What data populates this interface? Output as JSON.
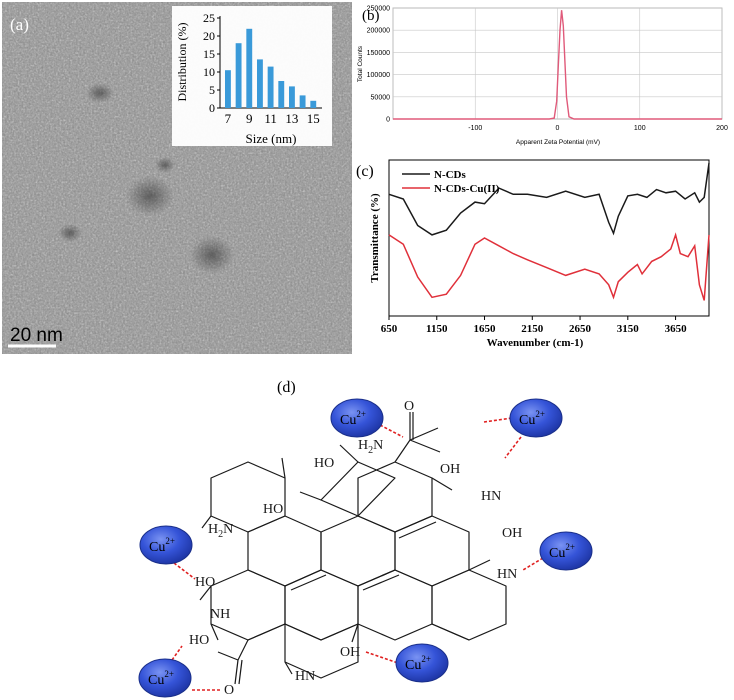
{
  "panel_a": {
    "label": "(a)",
    "scale_bar": "20 nm",
    "inset": {
      "ylabel": "Distribution (%)",
      "xlabel": "Size (nm)",
      "y_ticks": [
        "0",
        "5",
        "10",
        "15",
        "20",
        "25"
      ],
      "x_ticks": [
        "7",
        "9",
        "11",
        "13",
        "15"
      ]
    }
  },
  "panel_b": {
    "label": "(b)",
    "ylabel": "Total Counts",
    "xlabel": "Apparent Zeta Potential (mV)",
    "y_ticks": [
      "0",
      "50000",
      "100000",
      "150000",
      "200000",
      "250000"
    ],
    "x_ticks": [
      "-100",
      "0",
      "100",
      "200"
    ]
  },
  "panel_c": {
    "label": "(c)",
    "ylabel": "Transmittance (%)",
    "xlabel": "Wavenumber (cm-1)",
    "x_ticks": [
      "650",
      "1150",
      "1650",
      "2150",
      "2650",
      "3150",
      "3650"
    ],
    "legend": [
      "N-CDs",
      "N-CDs-Cu(II)"
    ]
  },
  "panel_d": {
    "label": "(d)",
    "ion": "Cu",
    "charge": "2+",
    "groups": {
      "h2n": "H",
      "h2n_sub": "2",
      "h2n_n": "N",
      "o": "O",
      "oh": "OH",
      "ho": "HO",
      "hn": "HN",
      "nh": "NH"
    }
  },
  "chart_data": [
    {
      "type": "bar",
      "categories": [
        "7",
        "8",
        "9",
        "10",
        "11",
        "12",
        "13",
        "14",
        "15"
      ],
      "values": [
        10.5,
        18,
        22,
        13.5,
        11.5,
        7.5,
        6,
        3.5,
        2
      ],
      "xlabel": "Size (nm)",
      "ylabel": "Distribution (%)",
      "ylim": [
        0,
        25
      ],
      "colors": [
        "#3a9ad9"
      ]
    },
    {
      "type": "line",
      "xlabel": "Apparent Zeta Potential (mV)",
      "ylabel": "Total Counts",
      "xlim": [
        -200,
        200
      ],
      "ylim": [
        0,
        250000
      ],
      "grid": true,
      "series": [
        {
          "x": [
            -200,
            -10,
            -4,
            -1,
            1,
            3,
            5,
            7,
            9,
            11,
            14,
            20,
            200
          ],
          "y": [
            0,
            0,
            2000,
            40000,
            120000,
            200000,
            245000,
            210000,
            130000,
            50000,
            5000,
            0,
            0
          ]
        }
      ],
      "colors": [
        "#e05a7a"
      ]
    },
    {
      "type": "line",
      "xlabel": "Wavenumber (cm-1)",
      "ylabel": "Transmittance (%)",
      "xlim": [
        650,
        4000
      ],
      "legend": "top-left",
      "series": [
        {
          "name": "N-CDs",
          "x": [
            650,
            800,
            950,
            1100,
            1250,
            1400,
            1550,
            1650,
            1800,
            1950,
            2100,
            2300,
            2500,
            2700,
            2850,
            2950,
            3000,
            3050,
            3150,
            3250,
            3350,
            3450,
            3550,
            3650,
            3750,
            3850,
            3900,
            3950,
            4000
          ],
          "y": [
            0.78,
            0.75,
            0.58,
            0.52,
            0.55,
            0.66,
            0.73,
            0.72,
            0.82,
            0.78,
            0.78,
            0.76,
            0.8,
            0.76,
            0.78,
            0.6,
            0.53,
            0.64,
            0.77,
            0.78,
            0.76,
            0.81,
            0.79,
            0.8,
            0.75,
            0.79,
            0.73,
            0.76,
            0.98
          ]
        },
        {
          "name": "N-CDs-Cu(II)",
          "x": [
            650,
            800,
            950,
            1100,
            1250,
            1400,
            1550,
            1650,
            1800,
            1950,
            2100,
            2300,
            2500,
            2700,
            2850,
            2950,
            3000,
            3050,
            3150,
            3250,
            3300,
            3400,
            3500,
            3600,
            3650,
            3700,
            3780,
            3850,
            3900,
            3950,
            4000
          ],
          "y": [
            0.52,
            0.46,
            0.25,
            0.12,
            0.14,
            0.26,
            0.46,
            0.5,
            0.45,
            0.4,
            0.36,
            0.31,
            0.26,
            0.3,
            0.27,
            0.2,
            0.12,
            0.22,
            0.28,
            0.33,
            0.27,
            0.35,
            0.38,
            0.43,
            0.52,
            0.4,
            0.38,
            0.45,
            0.2,
            0.1,
            0.52
          ]
        }
      ],
      "colors": [
        "#1a1a1a",
        "#e0303a"
      ]
    }
  ]
}
